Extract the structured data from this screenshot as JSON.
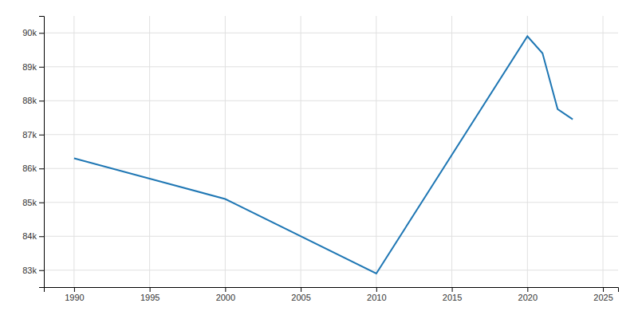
{
  "chart_data": {
    "type": "line",
    "x": [
      1990,
      1995,
      2000,
      2010,
      2020,
      2021,
      2022,
      2023
    ],
    "values": [
      86300,
      85700,
      85100,
      82900,
      89900,
      89400,
      87750,
      87450
    ],
    "xlim": [
      1988,
      2026
    ],
    "ylim": [
      82500,
      90500
    ],
    "xticks": [
      1990,
      1995,
      2000,
      2005,
      2010,
      2015,
      2020,
      2025
    ],
    "yticks": [
      {
        "value": 83000,
        "label": "83k"
      },
      {
        "value": 84000,
        "label": "84k"
      },
      {
        "value": 85000,
        "label": "85k"
      },
      {
        "value": 86000,
        "label": "86k"
      },
      {
        "value": 87000,
        "label": "87k"
      },
      {
        "value": 88000,
        "label": "88k"
      },
      {
        "value": 89000,
        "label": "89k"
      },
      {
        "value": 90000,
        "label": "90k"
      }
    ],
    "grid": true
  }
}
